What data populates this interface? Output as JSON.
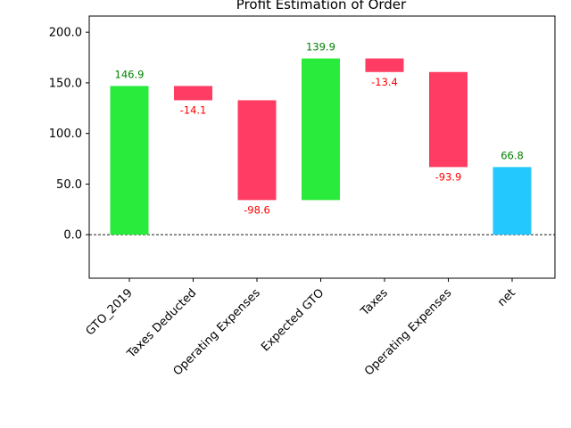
{
  "chart_data": {
    "type": "bar",
    "subtype": "waterfall",
    "title": "Profit Estimation of Order",
    "xlabel": "",
    "ylabel": "",
    "categories": [
      "GTO_2019",
      "Taxes Deducted",
      "Operating Expenses",
      "Expected GTO",
      "Taxes",
      "Operating Expenses",
      "net"
    ],
    "values": [
      146.9,
      -14.1,
      -98.6,
      139.9,
      -13.4,
      -93.9,
      66.8
    ],
    "bar_ranges": [
      [
        0,
        146.9
      ],
      [
        132.8,
        146.9
      ],
      [
        34.2,
        132.8
      ],
      [
        34.2,
        174.1
      ],
      [
        160.7,
        174.1
      ],
      [
        66.8,
        160.7
      ],
      [
        0,
        66.8
      ]
    ],
    "bar_kinds": [
      "increase",
      "decrease",
      "decrease",
      "increase",
      "decrease",
      "decrease",
      "total"
    ],
    "value_labels": [
      "146.9",
      "-14.1",
      "-98.6",
      "139.9",
      "-13.4",
      "-93.9",
      "66.8"
    ],
    "yticks": [
      "0.0",
      "50.0",
      "100.0",
      "150.0",
      "200.0"
    ],
    "ylim": [
      -43,
      216
    ],
    "grid": false,
    "zero_line": "dashed",
    "colors": {
      "increase": "#29eb3b",
      "decrease": "#fe3c64",
      "total": "#23c8fe",
      "increase_label": "#008000",
      "decrease_label": "#ff0000",
      "total_label": "#008000"
    }
  }
}
